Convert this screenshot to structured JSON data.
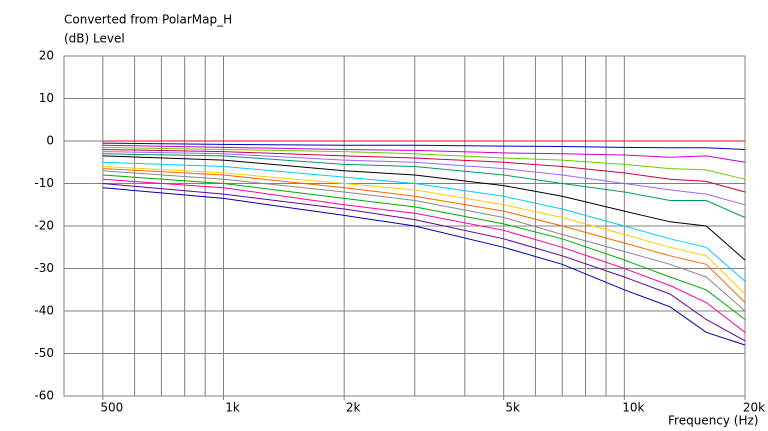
{
  "chart_data": {
    "type": "line",
    "title": "Converted from PolarMap_H",
    "y_label": "(dB)  Level",
    "x_label": "Frequency  (Hz)",
    "log_x": true,
    "grid": true,
    "xlim": [
      400,
      20000
    ],
    "ylim": [
      -60,
      20
    ],
    "yticks": [
      20,
      10,
      0,
      -10,
      -20,
      -30,
      -40,
      -50,
      -60
    ],
    "xticks": [
      {
        "value": 500,
        "label": "500"
      },
      {
        "value": 1000,
        "label": "1k"
      },
      {
        "value": 2000,
        "label": "2k"
      },
      {
        "value": 5000,
        "label": "5k"
      },
      {
        "value": 10000,
        "label": "10k"
      },
      {
        "value": 20000,
        "label": "20k"
      }
    ],
    "xgrid": [
      500,
      600,
      700,
      800,
      900,
      1000,
      2000,
      3000,
      4000,
      5000,
      6000,
      7000,
      8000,
      9000,
      10000,
      20000
    ],
    "x": [
      500,
      1000,
      2000,
      3000,
      5000,
      7000,
      10000,
      13000,
      16000,
      20000
    ],
    "series": [
      {
        "color": "#ff0000",
        "values": [
          0,
          0,
          0,
          0,
          0,
          0,
          0,
          0,
          0,
          0
        ]
      },
      {
        "color": "#0000cc",
        "values": [
          -0.5,
          -0.8,
          -1,
          -1,
          -1.2,
          -1.3,
          -1.5,
          -1.6,
          -1.6,
          -2
        ]
      },
      {
        "color": "#cc00cc",
        "values": [
          -1,
          -1.5,
          -2,
          -2.2,
          -2.8,
          -3,
          -3.3,
          -3.8,
          -3.5,
          -5
        ]
      },
      {
        "color": "#66cc00",
        "values": [
          -1.5,
          -2,
          -2.5,
          -3,
          -4,
          -4.5,
          -5.5,
          -6.5,
          -6.8,
          -9
        ]
      },
      {
        "color": "#cc0044",
        "values": [
          -2,
          -2.5,
          -3.5,
          -4,
          -5,
          -6,
          -7.5,
          -9,
          -9.5,
          -12
        ]
      },
      {
        "color": "#9966ff",
        "values": [
          -2.5,
          -3,
          -4.5,
          -5,
          -6.5,
          -8,
          -10,
          -11.5,
          -12.5,
          -15
        ]
      },
      {
        "color": "#009966",
        "values": [
          -3,
          -3.5,
          -5.5,
          -6,
          -8,
          -10,
          -12,
          -14,
          -14,
          -18
        ]
      },
      {
        "color": "#000000",
        "values": [
          -3.5,
          -4.5,
          -7,
          -8,
          -10.5,
          -13,
          -16.5,
          -19,
          -20,
          -28
        ]
      },
      {
        "color": "#00ccff",
        "values": [
          -5,
          -6,
          -8.5,
          -10,
          -13,
          -16,
          -20,
          -23,
          -25,
          -33
        ]
      },
      {
        "color": "#ffcc00",
        "values": [
          -6,
          -7.5,
          -10,
          -11.5,
          -15,
          -18,
          -22,
          -25,
          -27,
          -36
        ]
      },
      {
        "color": "#ff6600",
        "values": [
          -6.5,
          -8,
          -11,
          -13,
          -16.5,
          -20,
          -24,
          -27,
          -29,
          -38
        ]
      },
      {
        "color": "#888888",
        "values": [
          -7,
          -9,
          -12,
          -14,
          -18,
          -22,
          -26,
          -29,
          -32,
          -40
        ]
      },
      {
        "color": "#00aa00",
        "values": [
          -8,
          -10,
          -13.5,
          -15.5,
          -19.5,
          -23,
          -28,
          -32,
          -35,
          -42
        ]
      },
      {
        "color": "#ff0099",
        "values": [
          -9,
          -11,
          -15,
          -17,
          -21,
          -25,
          -30,
          -34,
          -38,
          -45
        ]
      },
      {
        "color": "#660099",
        "values": [
          -10,
          -12.5,
          -16,
          -18.5,
          -23,
          -27,
          -32,
          -36,
          -42,
          -47
        ]
      },
      {
        "color": "#0000aa",
        "values": [
          -11,
          -13.5,
          -17.5,
          -20,
          -25,
          -29,
          -35,
          -39,
          -45,
          -48
        ]
      }
    ]
  }
}
